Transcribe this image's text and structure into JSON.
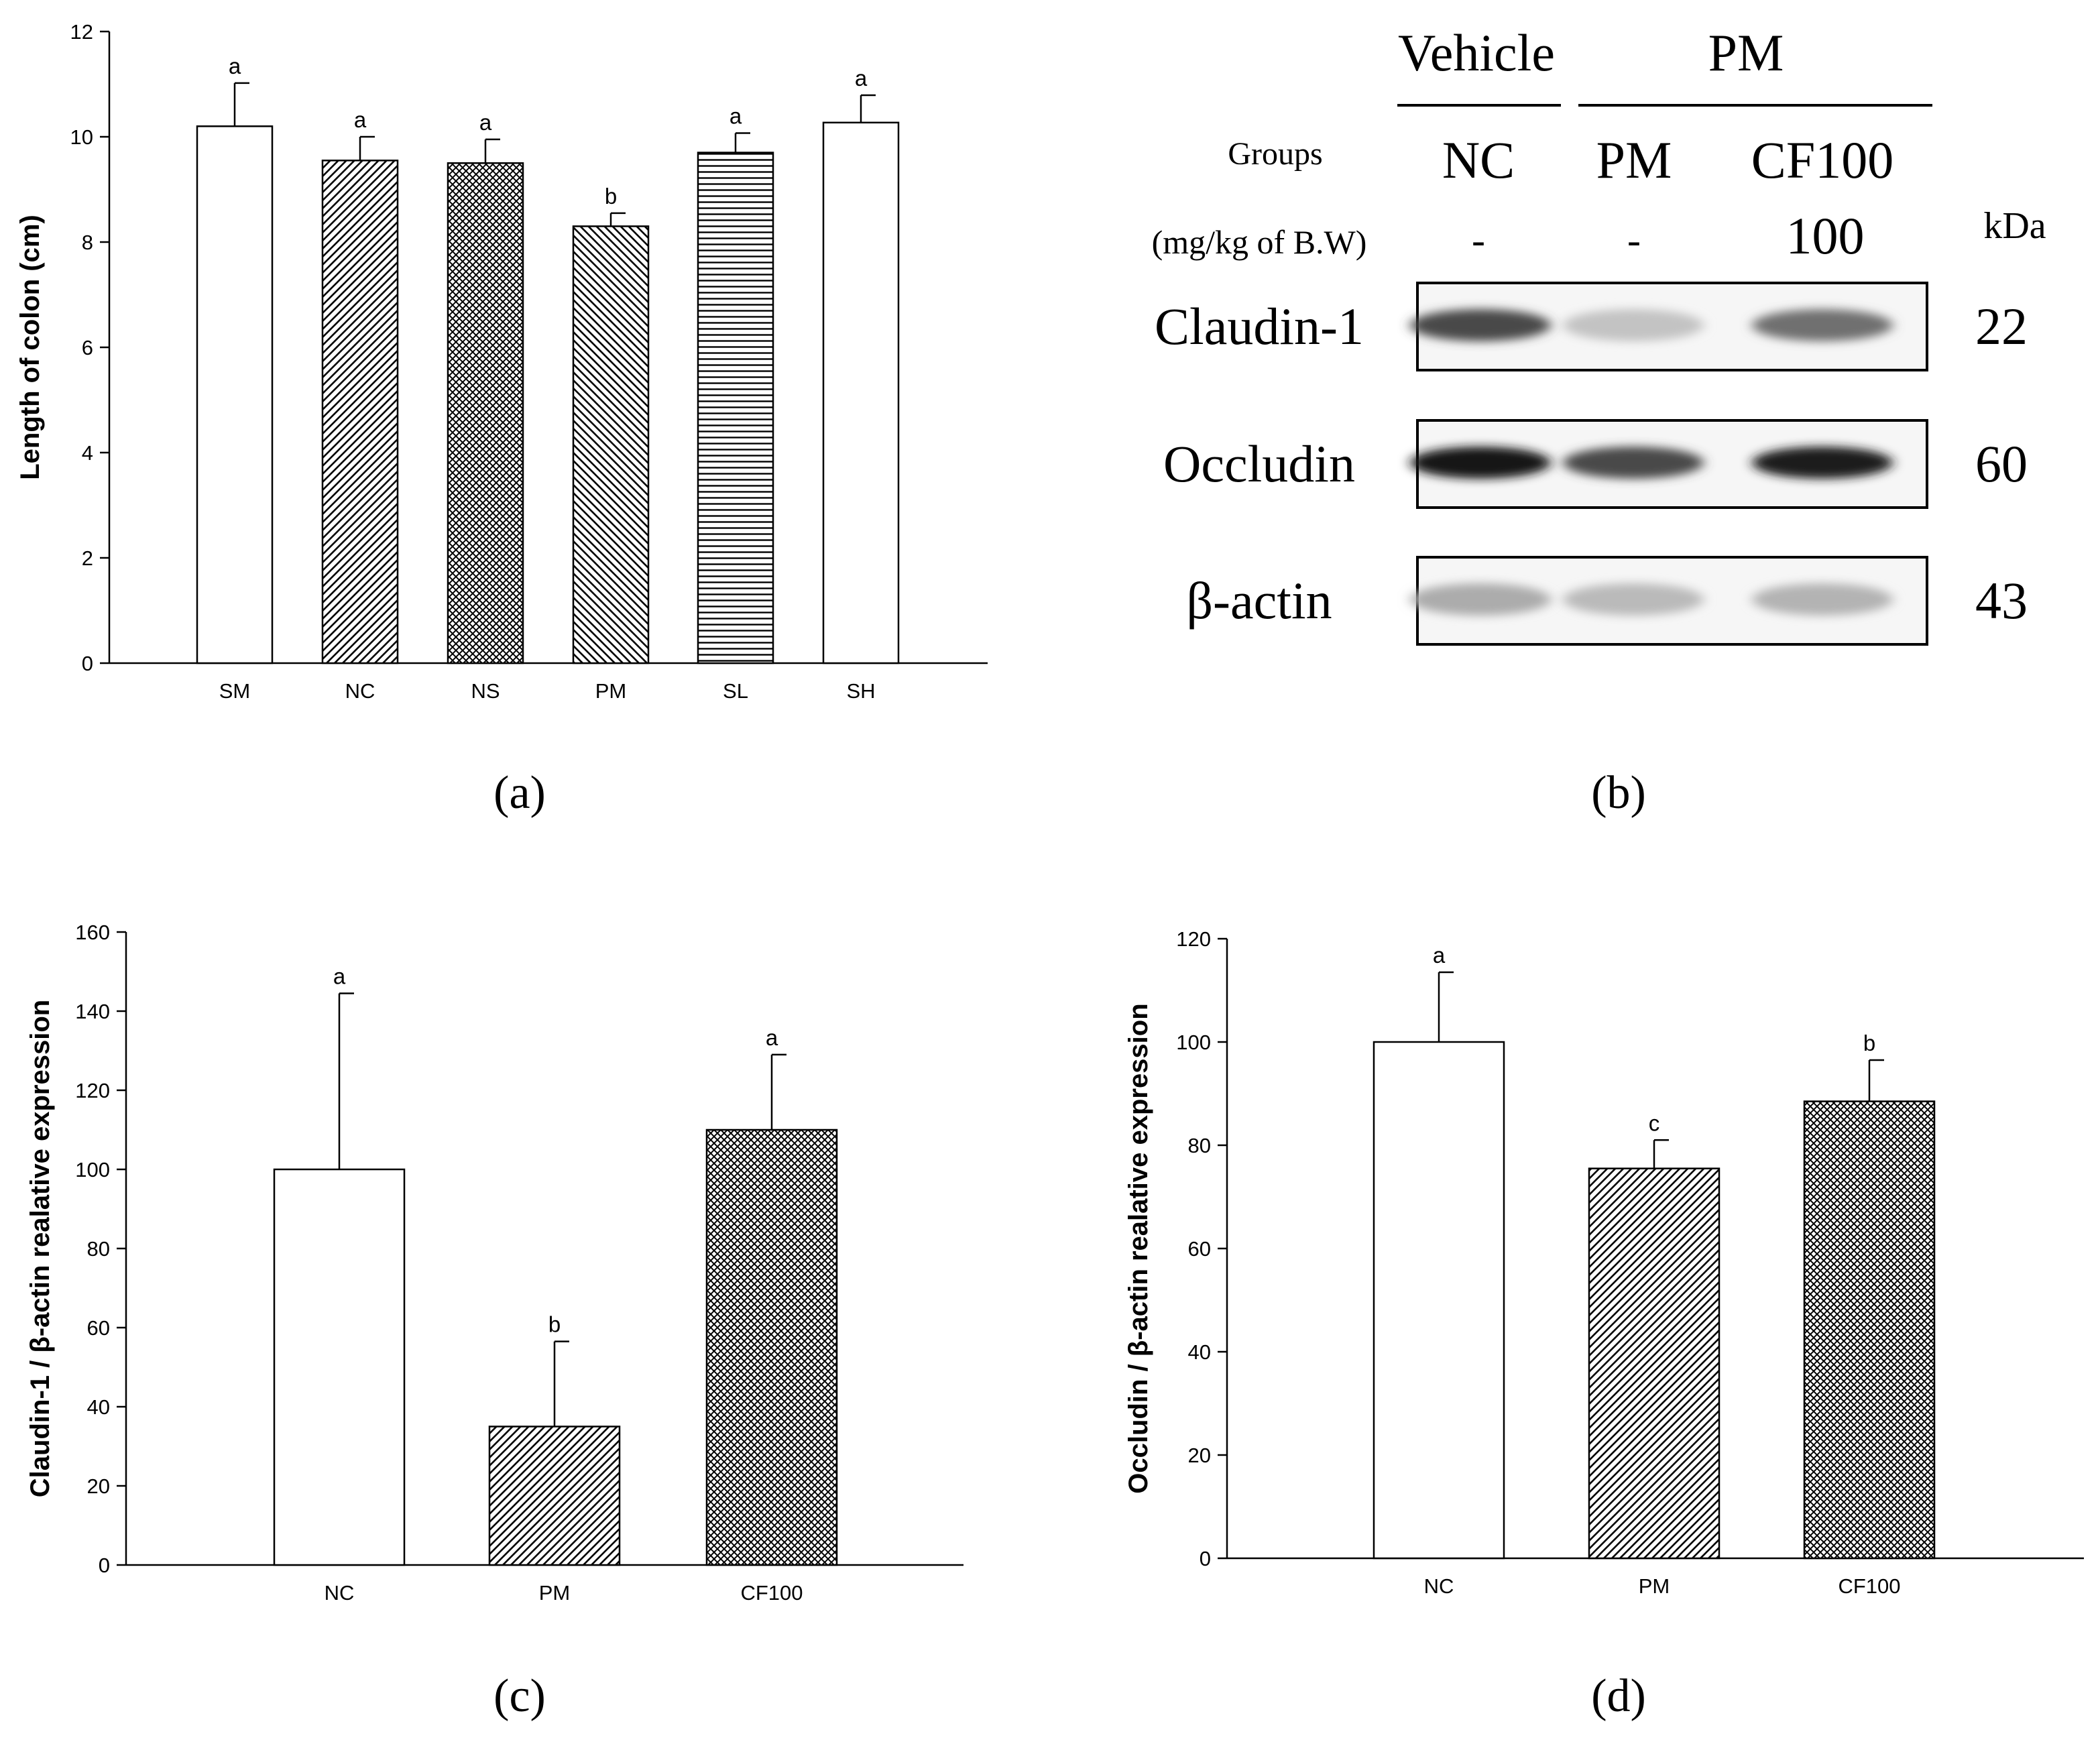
{
  "chart_data": [
    {
      "panel": "(a)",
      "type": "bar",
      "categories": [
        "SM",
        "NC",
        "NS",
        "PM",
        "SL",
        "SH"
      ],
      "values": [
        10.2,
        9.55,
        9.5,
        8.3,
        9.7,
        10.27
      ],
      "errors": [
        0.82,
        0.45,
        0.45,
        0.25,
        0.37,
        0.52
      ],
      "letters": [
        "a",
        "a",
        "a",
        "b",
        "a",
        "a"
      ],
      "patterns": [
        "none",
        "diag",
        "cross",
        "adiag",
        "horiz",
        "none"
      ],
      "ylabel": "Length of colon (cm)",
      "xlabel": "",
      "ylim": [
        0,
        12
      ],
      "yticks": [
        0,
        2,
        4,
        6,
        8,
        10,
        12
      ],
      "grid": false
    },
    {
      "panel": "(c)",
      "type": "bar",
      "categories": [
        "NC",
        "PM",
        "CF100"
      ],
      "values": [
        100,
        35,
        110
      ],
      "errors": [
        44.5,
        21.5,
        19
      ],
      "letters": [
        "a",
        "b",
        "a"
      ],
      "patterns": [
        "none",
        "diag",
        "cross"
      ],
      "ylabel": "Claudin-1 / β-actin realative expression",
      "xlabel": "",
      "ylim": [
        0,
        160
      ],
      "yticks": [
        0,
        20,
        40,
        60,
        80,
        100,
        120,
        140,
        160
      ],
      "grid": false
    },
    {
      "panel": "(d)",
      "type": "bar",
      "categories": [
        "NC",
        "PM",
        "CF100"
      ],
      "values": [
        100,
        75.5,
        88.5
      ],
      "errors": [
        13.5,
        5.5,
        8
      ],
      "letters": [
        "a",
        "c",
        "b"
      ],
      "patterns": [
        "none",
        "diag",
        "cross"
      ],
      "ylabel": "Occludin / β-actin realative expression",
      "xlabel": "",
      "ylim": [
        0,
        120
      ],
      "yticks": [
        0,
        20,
        40,
        60,
        80,
        100,
        120
      ],
      "grid": false
    }
  ],
  "panel_labels": {
    "a": "(a)",
    "b": "(b)",
    "c": "(c)",
    "d": "(d)"
  },
  "blot": {
    "vehicle_label": "Vehicle",
    "pm_group_label": "PM",
    "groups_label": "Groups",
    "dose_label": "(mg/kg of B.W)",
    "kda_label": "kDa",
    "lanes": [
      {
        "name": "NC",
        "dose": "-"
      },
      {
        "name": "PM",
        "dose": "-"
      },
      {
        "name": "CF100",
        "dose": "100"
      }
    ],
    "proteins": [
      {
        "name": "Claudin-1",
        "kda": "22",
        "intensity": [
          0.72,
          0.18,
          0.55
        ]
      },
      {
        "name": "Occludin",
        "kda": "60",
        "intensity": [
          0.95,
          0.72,
          0.93
        ]
      },
      {
        "name": "β-actin",
        "kda": "43",
        "intensity": [
          0.28,
          0.22,
          0.25
        ]
      }
    ]
  }
}
